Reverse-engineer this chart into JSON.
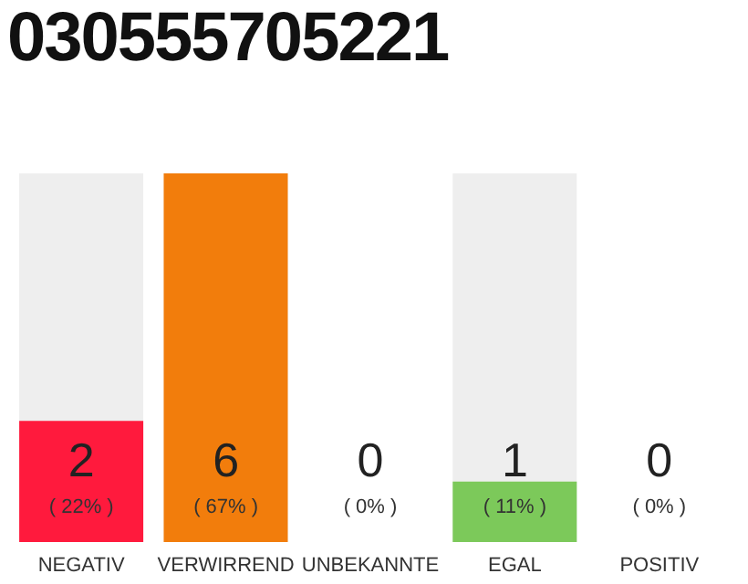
{
  "chart_data": {
    "type": "bar",
    "title": "030555705221",
    "categories": [
      "NEGATIV",
      "VERWIRREND",
      "UNBEKANNTE",
      "EGAL",
      "POSITIV"
    ],
    "values": [
      22,
      67,
      0,
      11,
      0
    ],
    "value_labels": [
      "( 22% )",
      "( 67% )",
      "( 0% )",
      "( 11% )",
      "( 0% )"
    ],
    "colors": [
      "#ff1a3d",
      "#f27d0c",
      "#eeeeee",
      "#7cc95a",
      "#eeeeee"
    ],
    "annotations": [
      "2",
      "6",
      "0",
      "1",
      "0"
    ],
    "grid": false,
    "legend": false
  }
}
